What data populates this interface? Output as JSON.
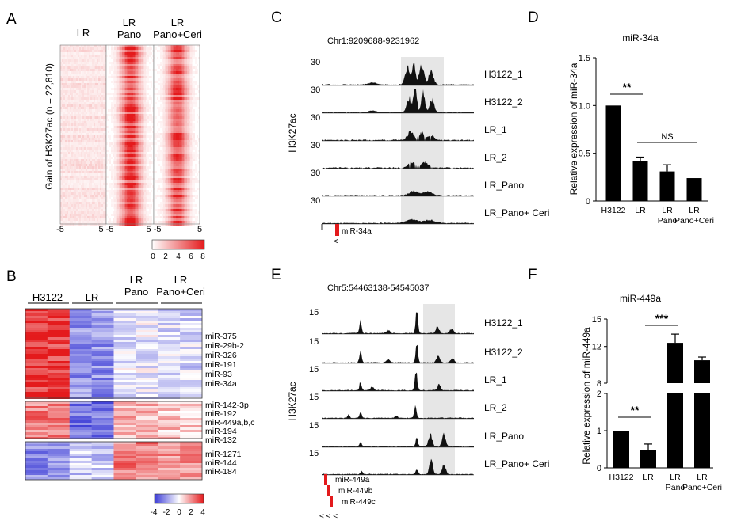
{
  "colors": {
    "heat_red": "#e41a1c",
    "heat_blue": "#3b3bd6",
    "track_fill": "#111111",
    "highlight": "#e6e6e6",
    "mirna_red": "#e31a1c",
    "bar_fill": "#000000"
  },
  "panel_a": {
    "letter": "A",
    "col_labels": [
      {
        "line1": "LR",
        "line2": ""
      },
      {
        "line1": "LR",
        "line2": "Pano"
      },
      {
        "line1": "LR",
        "line2": "Pano+Ceri"
      }
    ],
    "ylabel": "Gain of H3K27ac  (n = 22,810)",
    "x_ticks": [
      "-5",
      "5 -5",
      "5 -5",
      "5"
    ],
    "scale_ticks": [
      "0",
      "2",
      "4",
      "6",
      "8"
    ]
  },
  "panel_b": {
    "letter": "B",
    "group_labels": [
      {
        "line1": "H3122",
        "line2": ""
      },
      {
        "line1": "LR",
        "line2": ""
      },
      {
        "line1": "LR",
        "line2": "Pano"
      },
      {
        "line1": "LR",
        "line2": "Pano+Ceri"
      }
    ],
    "cluster1_labels": [
      "miR-375",
      "miR-29b-2",
      "miR-326",
      "miR-191",
      "miR-93",
      "miR-34a"
    ],
    "cluster2_labels": [
      "miR-142-3p",
      "miR-192",
      "miR-449a,b,c",
      "miR-194",
      "miR-132"
    ],
    "cluster3_labels": [
      "miR-1271",
      "miR-144",
      "miR-184"
    ],
    "scale_ticks": [
      "-4",
      "-2",
      "0",
      "2",
      "4"
    ]
  },
  "panel_c": {
    "letter": "C",
    "locus": "Chr1:9209688-9231962",
    "ylabel": "H3K27ac",
    "scale": "30",
    "tracks": [
      "H3122_1",
      "H3122_2",
      "LR_1",
      "LR_2",
      "LR_Pano",
      "LR_Pano+ Ceri"
    ],
    "genes": [
      "miR-34a"
    ],
    "strand": "<"
  },
  "panel_e": {
    "letter": "E",
    "locus": "Chr5:54463138-54545037",
    "ylabel": "H3K27ac",
    "scale": "15",
    "tracks": [
      "H3122_1",
      "H3122_2",
      "LR_1",
      "LR_2",
      "LR_Pano",
      "LR_Pano+ Ceri"
    ],
    "genes": [
      "miR-449a",
      "miR-449b",
      "miR-449c"
    ],
    "strand": "< < <"
  },
  "chart_data": [
    {
      "panel": "D",
      "letter": "D",
      "type": "bar",
      "title": "miR-34a",
      "ylabel": "Relative  expression of miR-34a",
      "xlabel": "",
      "categories": [
        {
          "line1": "H3122",
          "line2": ""
        },
        {
          "line1": "LR",
          "line2": ""
        },
        {
          "line1": "LR",
          "line2": "Pano"
        },
        {
          "line1": "LR",
          "line2": "Pano+Ceri"
        }
      ],
      "values": [
        1.0,
        0.42,
        0.31,
        0.24
      ],
      "errors": [
        0.0,
        0.04,
        0.07,
        0.0
      ],
      "ylim": [
        0,
        1.5
      ],
      "yticks": [
        "0",
        "0.5",
        "1.0",
        "1.5"
      ],
      "significance": [
        {
          "from": 0,
          "to": 1,
          "label": "**"
        },
        {
          "from": 1,
          "to": 3,
          "label": "NS"
        }
      ]
    },
    {
      "panel": "F",
      "letter": "F",
      "type": "bar",
      "title": "miR-449a",
      "ylabel": "Relative  expression of miR-449a",
      "xlabel": "",
      "categories": [
        {
          "line1": "H3122",
          "line2": ""
        },
        {
          "line1": "LR",
          "line2": ""
        },
        {
          "line1": "LR",
          "line2": "Pano"
        },
        {
          "line1": "LR",
          "line2": "Pano+Ceri"
        }
      ],
      "values": [
        1.0,
        0.47,
        12.4,
        10.5
      ],
      "errors": [
        0.0,
        0.17,
        0.95,
        0.35
      ],
      "broken_axis": {
        "lower": [
          0,
          2
        ],
        "upper": [
          8,
          15
        ]
      },
      "yticks_lower": [
        "0",
        "1",
        "2"
      ],
      "yticks_upper": [
        "8",
        "12",
        "15"
      ],
      "significance": [
        {
          "from": 0,
          "to": 1,
          "label": "**"
        },
        {
          "from": 1,
          "to": 2,
          "label": "***"
        }
      ]
    }
  ]
}
